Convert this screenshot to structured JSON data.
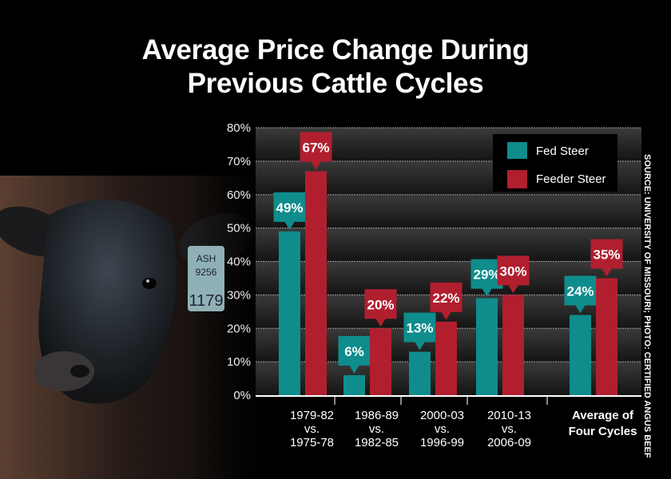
{
  "title": [
    "Average Price Change During",
    "Previous Cattle Cycles"
  ],
  "source": "SOURCE: UNIVERSITY OF MISSOURI; PHOTO: CERTIFIED ANGUS BEEF",
  "photo": {
    "subject": "black angus cow",
    "ear_tag": [
      "ASH",
      "9256",
      "1179"
    ]
  },
  "colors": {
    "fed_steer": "#0f8c8c",
    "feeder_steer": "#b11f2f",
    "background": "#000000"
  },
  "chart_data": {
    "type": "bar",
    "title": "Average Price Change During Previous Cattle Cycles",
    "categories": [
      [
        "1979-82",
        "vs.",
        "1975-78"
      ],
      [
        "1986-89",
        "vs.",
        "1982-85"
      ],
      [
        "2000-03",
        "vs.",
        "1996-99"
      ],
      [
        "2010-13",
        "vs.",
        "2006-09"
      ],
      [
        "Average of",
        "Four Cycles"
      ]
    ],
    "series": [
      {
        "name": "Fed Steer",
        "values": [
          49,
          6,
          13,
          29,
          24
        ],
        "labels": [
          "49%",
          "6%",
          "13%",
          "29%",
          "24%"
        ]
      },
      {
        "name": "Feeder Steer",
        "values": [
          67,
          20,
          22,
          30,
          35
        ],
        "labels": [
          "67%",
          "20%",
          "22%",
          "30%",
          "35%"
        ]
      }
    ],
    "yticks": [
      "0%",
      "10%",
      "20%",
      "30%",
      "40%",
      "50%",
      "60%",
      "70%",
      "80%"
    ],
    "ylim": [
      0,
      80
    ],
    "grid": true,
    "legend": "top-right"
  }
}
